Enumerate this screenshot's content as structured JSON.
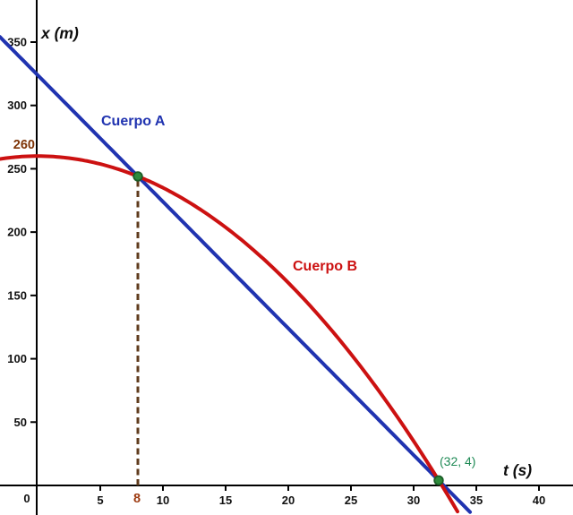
{
  "chart_data": {
    "type": "line",
    "title": "",
    "xlabel": "t (s)",
    "ylabel": "x (m)",
    "x_ticks": [
      5,
      10,
      15,
      20,
      25,
      30,
      35,
      40
    ],
    "y_ticks": [
      50,
      100,
      150,
      200,
      250,
      300,
      350
    ],
    "xlim": [
      -3,
      42.7
    ],
    "ylim": [
      -23,
      383
    ],
    "grid": false,
    "background": "#ffffff",
    "axis_color": "#000000",
    "tick_label_color": "#111111",
    "series": [
      {
        "name": "Cuerpo A",
        "type": "linear",
        "slope": -10,
        "intercept": 324,
        "domain": [
          -3,
          34.66
        ],
        "color": "#2033b0",
        "width": 4
      },
      {
        "name": "Cuerpo B",
        "type": "quadratic",
        "a": -0.25,
        "b": 0,
        "c": 260,
        "domain": [
          -3,
          33.63
        ],
        "color": "#cc1111",
        "width": 4
      }
    ],
    "points": [
      {
        "t": 8,
        "x": 244,
        "fill": "#2e8b3c",
        "stroke": "#1a5c26"
      },
      {
        "t": 32,
        "x": 4,
        "fill": "#2e8b3c",
        "stroke": "#1a5c26"
      }
    ],
    "annotations": {
      "point_label": "(32, 4)",
      "point_label_color": "#1f8a55",
      "point_label_for": {
        "t": 32,
        "x": 4
      },
      "x_marker_label": "8",
      "x_marker_value": 8,
      "x_marker_color": "#9c3a10",
      "y_marker_label": "260",
      "y_marker_value": 260,
      "y_marker_color": "#7e3407",
      "dashed_line": {
        "t": 8,
        "x_from": 0,
        "x_to": 244,
        "color": "#5f3b1d"
      },
      "origin_label": "0"
    }
  }
}
